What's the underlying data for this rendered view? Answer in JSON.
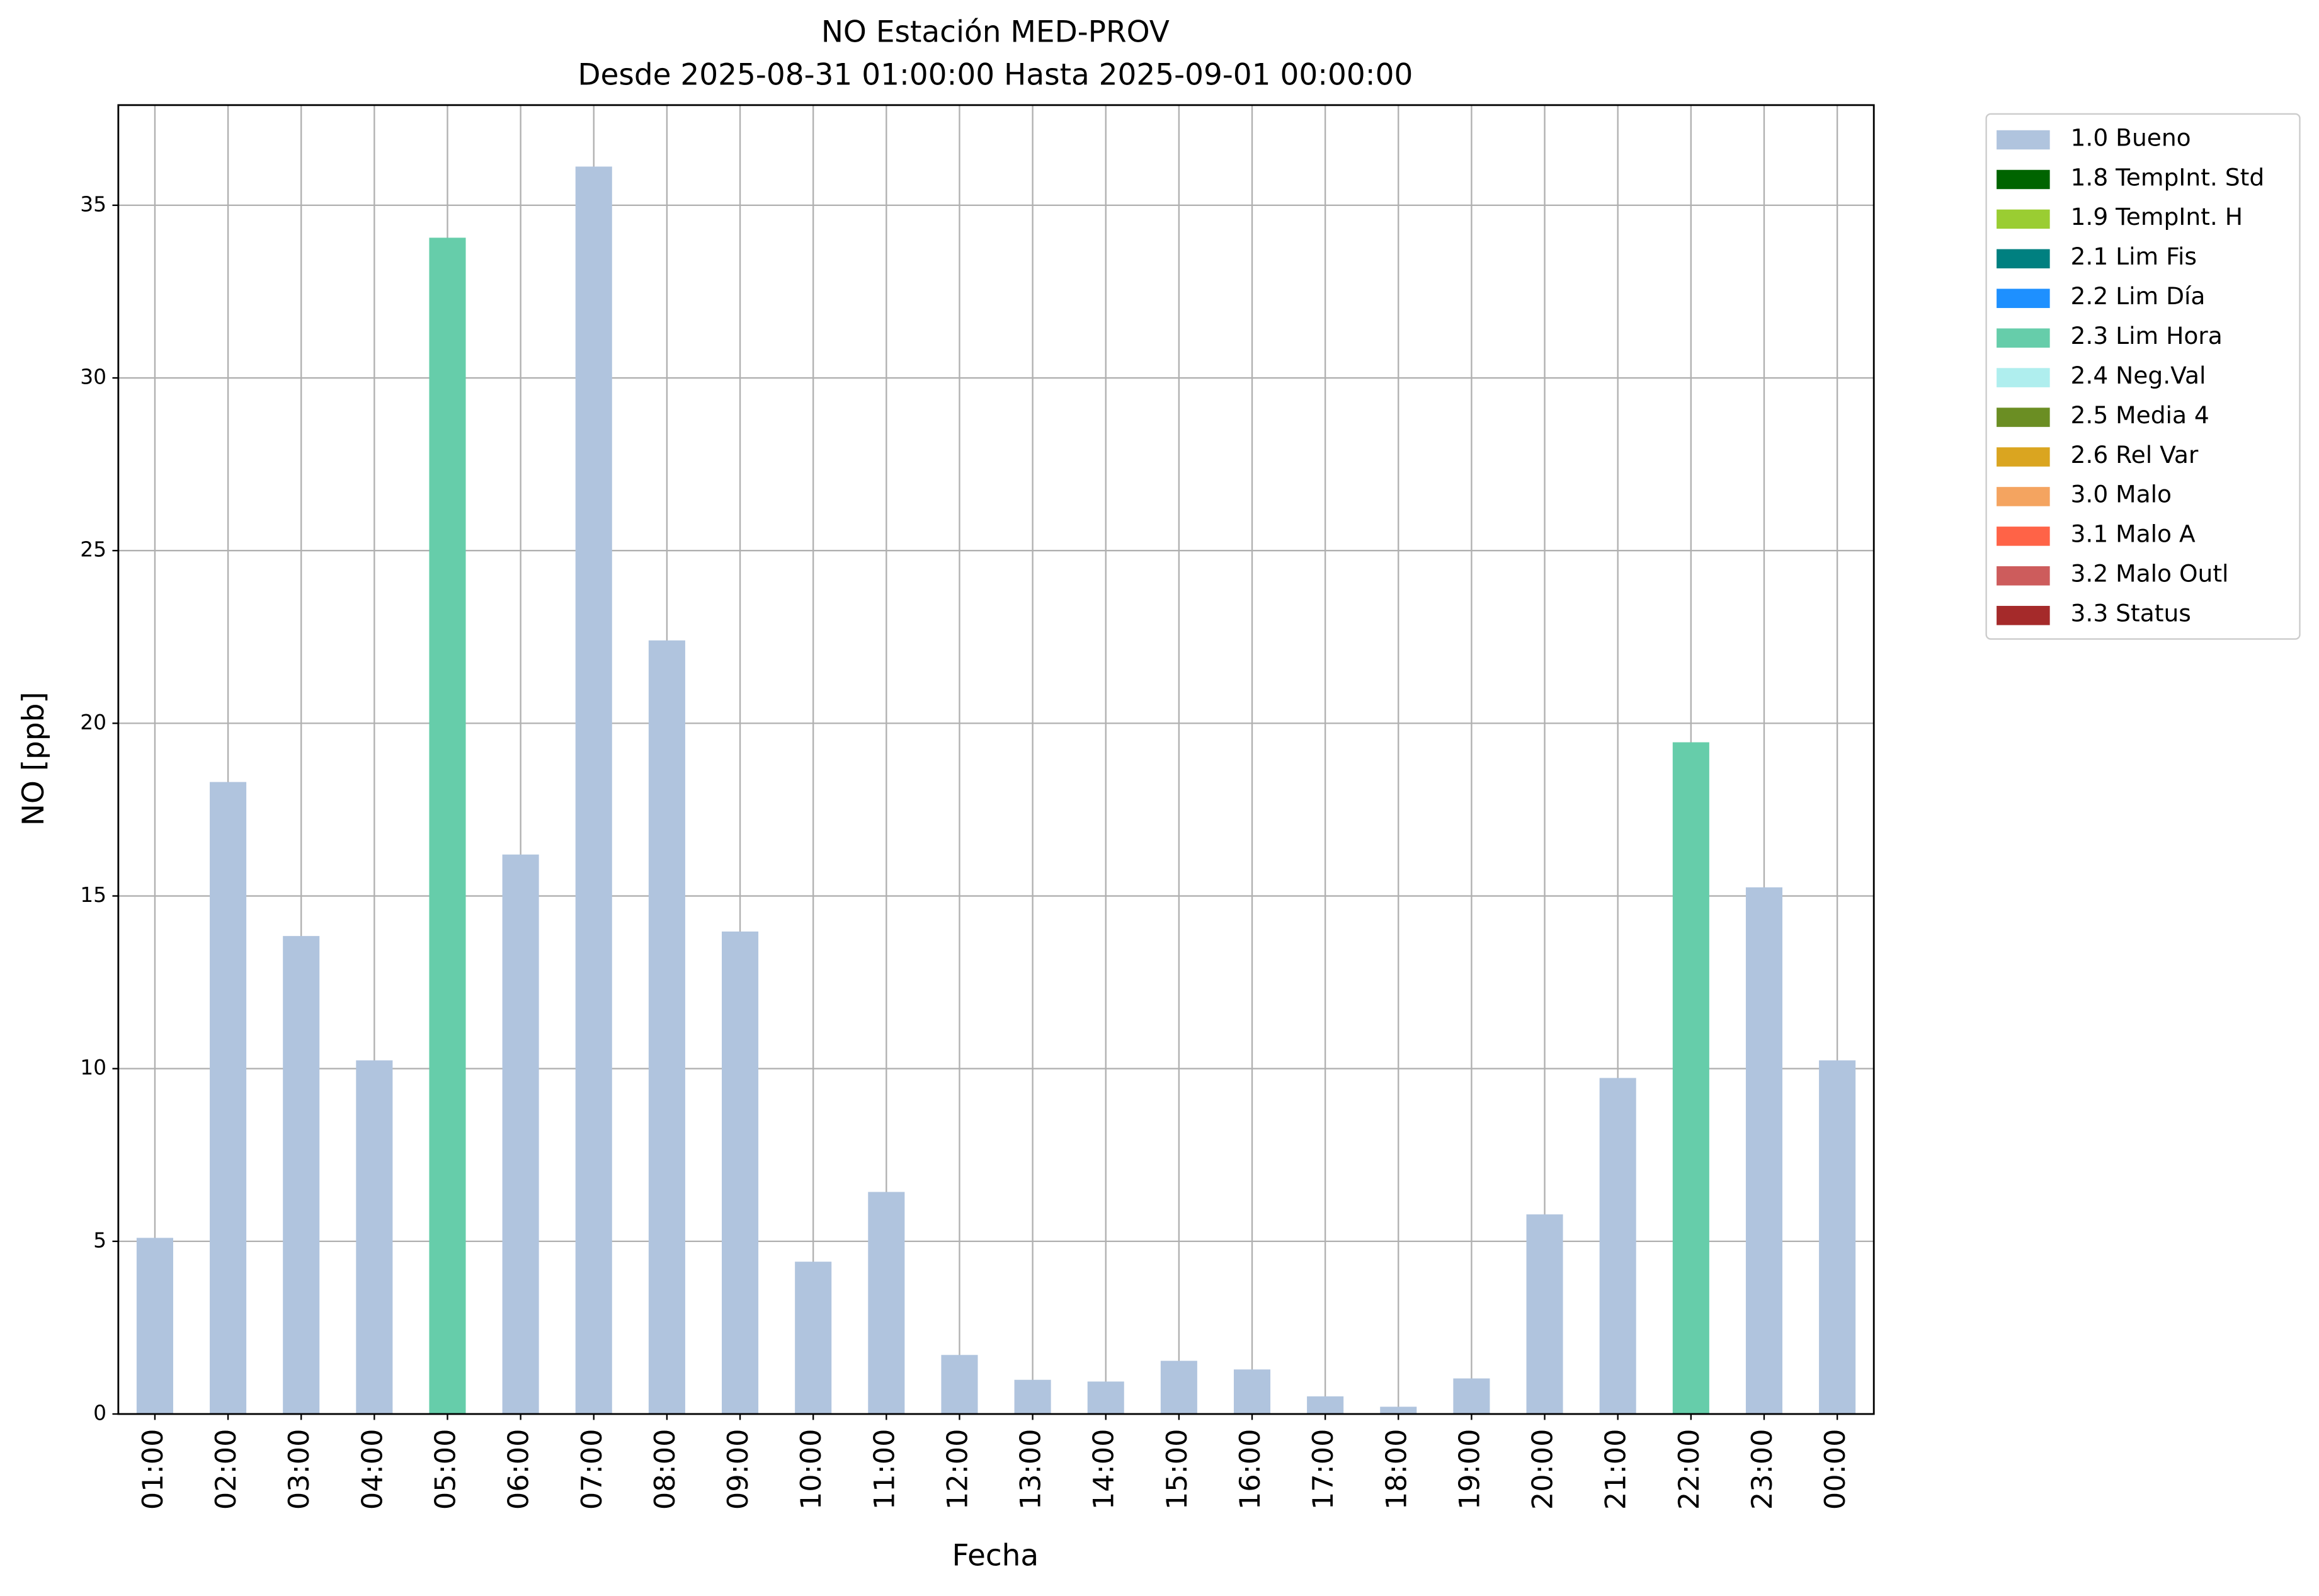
{
  "chart_data": {
    "type": "stacked_bar",
    "title": "NO Estación MED-PROV",
    "subtitle": "Desde 2025-08-31 01:00:00 Hasta 2025-09-01 00:00:00",
    "x_label": "Fecha",
    "y_label": "NO [ppb]",
    "categories": [
      "01:00",
      "02:00",
      "03:00",
      "04:00",
      "05:00",
      "06:00",
      "07:00",
      "08:00",
      "09:00",
      "10:00",
      "11:00",
      "12:00",
      "13:00",
      "14:00",
      "15:00",
      "16:00",
      "17:00",
      "18:00",
      "19:00",
      "20:00",
      "21:00",
      "22:00",
      "23:00",
      "00:00"
    ],
    "ylim": [
      0,
      37.9
    ],
    "yticks": [
      0,
      5,
      10,
      15,
      20,
      25,
      30,
      35
    ],
    "grid": true,
    "legend": "outside-right",
    "series": [
      {
        "name": "1.0 Bueno",
        "color": "#b0c4de",
        "values": [
          5.1,
          18.3,
          13.84,
          10.24,
          null,
          16.2,
          36.12,
          22.4,
          13.97,
          4.41,
          6.43,
          1.71,
          0.99,
          0.94,
          1.54,
          1.29,
          0.51,
          0.21,
          1.03,
          5.78,
          9.73,
          null,
          15.25,
          10.24
        ]
      },
      {
        "name": "1.8 TempInt. Std",
        "color": "#006400",
        "values": [
          null,
          null,
          null,
          null,
          null,
          null,
          null,
          null,
          null,
          null,
          null,
          null,
          null,
          null,
          null,
          null,
          null,
          null,
          null,
          null,
          null,
          null,
          null,
          null
        ]
      },
      {
        "name": "1.9 TempInt. H",
        "color": "#9acd32",
        "values": [
          null,
          null,
          null,
          null,
          null,
          null,
          null,
          null,
          null,
          null,
          null,
          null,
          null,
          null,
          null,
          null,
          null,
          null,
          null,
          null,
          null,
          null,
          null,
          null
        ]
      },
      {
        "name": "2.1 Lim Fis",
        "color": "#008080",
        "values": [
          null,
          null,
          null,
          null,
          null,
          null,
          null,
          null,
          null,
          null,
          null,
          null,
          null,
          null,
          null,
          null,
          null,
          null,
          null,
          null,
          null,
          null,
          null,
          null
        ]
      },
      {
        "name": "2.2 Lim Día",
        "color": "#1e90ff",
        "values": [
          null,
          null,
          null,
          null,
          null,
          null,
          null,
          null,
          null,
          null,
          null,
          null,
          null,
          null,
          null,
          null,
          null,
          null,
          null,
          null,
          null,
          null,
          null,
          null
        ]
      },
      {
        "name": "2.3 Lim Hora",
        "color": "#66cdaa",
        "values": [
          null,
          null,
          null,
          null,
          34.06,
          null,
          null,
          null,
          null,
          null,
          null,
          null,
          null,
          null,
          null,
          null,
          null,
          null,
          null,
          null,
          null,
          19.45,
          null,
          null
        ]
      },
      {
        "name": "2.4 Neg.Val",
        "color": "#afeeee",
        "values": [
          null,
          null,
          null,
          null,
          null,
          null,
          null,
          null,
          null,
          null,
          null,
          null,
          null,
          null,
          null,
          null,
          null,
          null,
          null,
          null,
          null,
          null,
          null,
          null
        ]
      },
      {
        "name": "2.5 Media 4",
        "color": "#6b8e23",
        "values": [
          null,
          null,
          null,
          null,
          null,
          null,
          null,
          null,
          null,
          null,
          null,
          null,
          null,
          null,
          null,
          null,
          null,
          null,
          null,
          null,
          null,
          null,
          null,
          null
        ]
      },
      {
        "name": "2.6 Rel Var",
        "color": "#daa520",
        "values": [
          null,
          null,
          null,
          null,
          null,
          null,
          null,
          null,
          null,
          null,
          null,
          null,
          null,
          null,
          null,
          null,
          null,
          null,
          null,
          null,
          null,
          null,
          null,
          null
        ]
      },
      {
        "name": "3.0 Malo",
        "color": "#f4a460",
        "values": [
          null,
          null,
          null,
          null,
          null,
          null,
          null,
          null,
          null,
          null,
          null,
          null,
          null,
          null,
          null,
          null,
          null,
          null,
          null,
          null,
          null,
          null,
          null,
          null
        ]
      },
      {
        "name": "3.1 Malo A",
        "color": "#ff6347",
        "values": [
          null,
          null,
          null,
          null,
          null,
          null,
          null,
          null,
          null,
          null,
          null,
          null,
          null,
          null,
          null,
          null,
          null,
          null,
          null,
          null,
          null,
          null,
          null,
          null
        ]
      },
      {
        "name": "3.2 Malo Outl",
        "color": "#cd5c5c",
        "values": [
          null,
          null,
          null,
          null,
          null,
          null,
          null,
          null,
          null,
          null,
          null,
          null,
          null,
          null,
          null,
          null,
          null,
          null,
          null,
          null,
          null,
          null,
          null,
          null
        ]
      },
      {
        "name": "3.3 Status",
        "color": "#a52a2a",
        "values": [
          null,
          null,
          null,
          null,
          null,
          null,
          null,
          null,
          null,
          null,
          null,
          null,
          null,
          null,
          null,
          null,
          null,
          null,
          null,
          null,
          null,
          null,
          null,
          null
        ]
      }
    ]
  }
}
